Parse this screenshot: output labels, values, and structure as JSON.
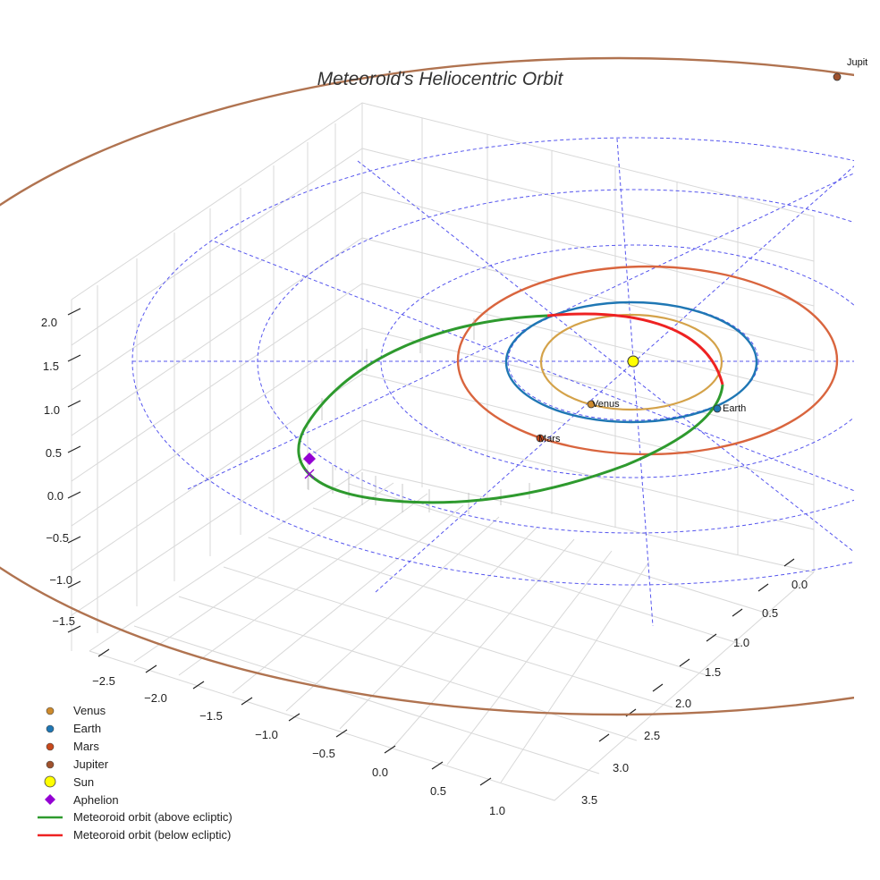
{
  "chart_data": {
    "type": "line3d",
    "title": "Meteoroid's Heliocentric Orbit",
    "x_ticks": [
      "−2.5",
      "−2.0",
      "−1.5",
      "−1.0",
      "−0.5",
      "0.0",
      "0.5",
      "1.0"
    ],
    "y_ticks": [
      "0.0",
      "0.5",
      "1.0",
      "1.5",
      "2.0",
      "2.5",
      "3.0",
      "3.5"
    ],
    "z_ticks": [
      "2.0",
      "1.5",
      "1.0",
      "0.5",
      "0.0",
      "−0.5",
      "−1.0",
      "−1.5"
    ],
    "xlim": [
      -2.7,
      1.2
    ],
    "ylim": [
      -0.2,
      3.6
    ],
    "zlim": [
      -1.8,
      2.2
    ],
    "planets": [
      {
        "name": "Venus",
        "label": "Venus",
        "color": "#cd8a2c",
        "orbit_color": "#d4a249",
        "orbit_radius_au": 0.72
      },
      {
        "name": "Earth",
        "label": "Earth",
        "color": "#1f77b4",
        "orbit_color": "#1f77b4",
        "orbit_radius_au": 1.0
      },
      {
        "name": "Mars",
        "label": "Mars",
        "color": "#c8491c",
        "orbit_color": "#d9653e",
        "orbit_radius_au": 1.52
      },
      {
        "name": "Jupiter",
        "label": "Jupit",
        "color": "#a0522d",
        "orbit_color": "#b07350",
        "orbit_radius_au": 5.2
      }
    ],
    "sun": {
      "name": "Sun",
      "color": "#ffff00"
    },
    "aphelion": {
      "name": "Aphelion",
      "color": "#9400d3"
    },
    "meteoroid_orbit": [
      {
        "name": "Meteoroid orbit (above ecliptic)",
        "color": "#2e9a2e"
      },
      {
        "name": "Meteoroid orbit (below ecliptic)",
        "color": "#ee2222"
      }
    ],
    "ecliptic_grid": {
      "rings_au": [
        1,
        2,
        3,
        4
      ],
      "spokes": 8,
      "color": "#5555ee"
    },
    "legend": [
      "Venus",
      "Earth",
      "Mars",
      "Jupiter",
      "Sun",
      "Aphelion",
      "Meteoroid orbit (above ecliptic)",
      "Meteoroid orbit (below ecliptic)"
    ]
  }
}
